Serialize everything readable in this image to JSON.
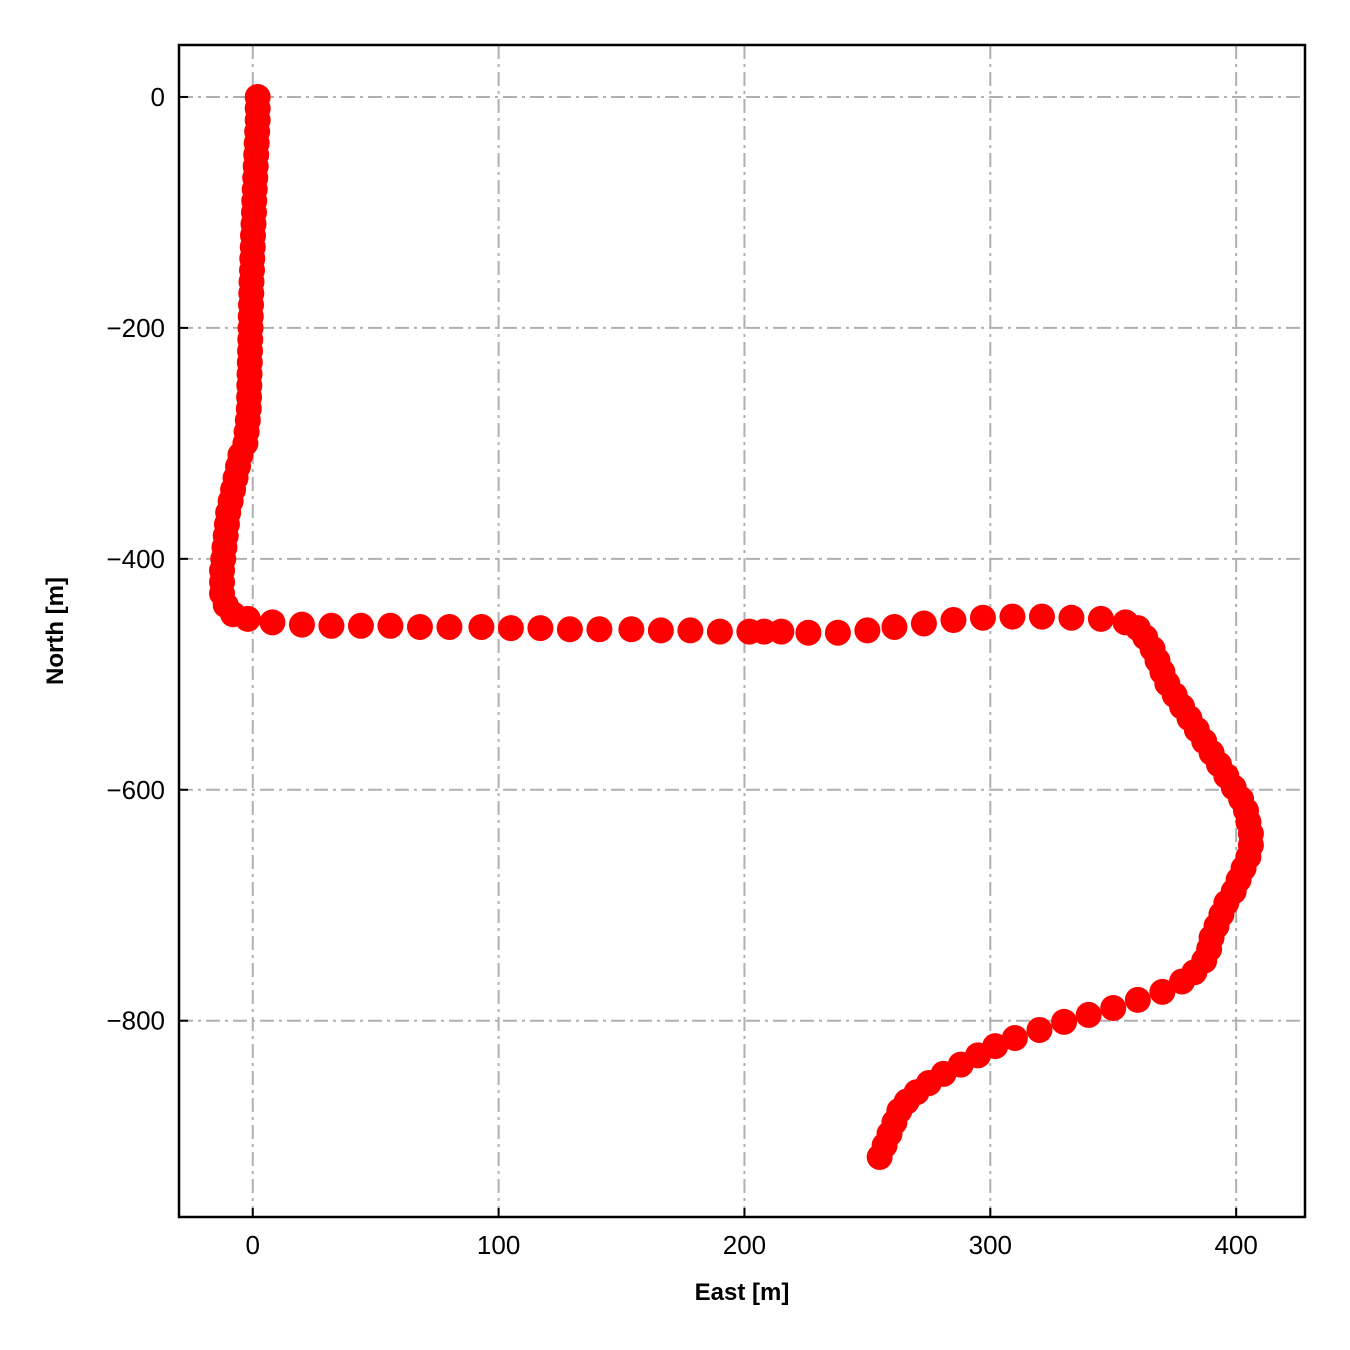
{
  "chart_data": {
    "type": "scatter",
    "title": "",
    "xlabel": "East [m]",
    "ylabel": "North [m]",
    "xlim": [
      -30,
      428
    ],
    "ylim": [
      -970,
      45
    ],
    "xticks": [
      0,
      100,
      200,
      300,
      400
    ],
    "yticks": [
      0,
      -200,
      -400,
      -600,
      -800
    ],
    "xtick_labels": [
      "0",
      "100",
      "200",
      "300",
      "400"
    ],
    "ytick_labels": [
      "0",
      "−200",
      "−400",
      "−600",
      "−800"
    ],
    "grid": true,
    "marker_color": "#ff0000",
    "series": [
      {
        "points": [
          [
            2,
            0
          ],
          [
            2,
            -10
          ],
          [
            2,
            -20
          ],
          [
            1.8,
            -30
          ],
          [
            1.6,
            -40
          ],
          [
            1.4,
            -50
          ],
          [
            1.2,
            -60
          ],
          [
            1,
            -70
          ],
          [
            0.8,
            -80
          ],
          [
            0.6,
            -90
          ],
          [
            0.5,
            -100
          ],
          [
            0.3,
            -110
          ],
          [
            0.1,
            -120
          ],
          [
            0,
            -130
          ],
          [
            -0.2,
            -140
          ],
          [
            -0.3,
            -150
          ],
          [
            -0.5,
            -160
          ],
          [
            -0.6,
            -170
          ],
          [
            -0.7,
            -180
          ],
          [
            -0.8,
            -190
          ],
          [
            -0.9,
            -200
          ],
          [
            -1,
            -210
          ],
          [
            -1.1,
            -220
          ],
          [
            -1.2,
            -230
          ],
          [
            -1.3,
            -240
          ],
          [
            -1.4,
            -250
          ],
          [
            -1.5,
            -260
          ],
          [
            -1.6,
            -270
          ],
          [
            -2,
            -280
          ],
          [
            -2.5,
            -290
          ],
          [
            -3,
            -300
          ],
          [
            -5,
            -310
          ],
          [
            -6,
            -320
          ],
          [
            -7,
            -330
          ],
          [
            -8,
            -340
          ],
          [
            -9,
            -350
          ],
          [
            -10,
            -360
          ],
          [
            -10.5,
            -370
          ],
          [
            -11,
            -380
          ],
          [
            -11.5,
            -390
          ],
          [
            -12,
            -400
          ],
          [
            -12.5,
            -410
          ],
          [
            -12.5,
            -420
          ],
          [
            -12.5,
            -430
          ],
          [
            -11,
            -440
          ],
          [
            -8,
            -448
          ],
          [
            -2,
            -452
          ],
          [
            8,
            -455
          ],
          [
            20,
            -457
          ],
          [
            32,
            -458
          ],
          [
            44,
            -458
          ],
          [
            56,
            -458
          ],
          [
            68,
            -459
          ],
          [
            80,
            -459
          ],
          [
            93,
            -459
          ],
          [
            105,
            -460
          ],
          [
            117,
            -460
          ],
          [
            129,
            -461
          ],
          [
            141,
            -461
          ],
          [
            154,
            -461
          ],
          [
            166,
            -462
          ],
          [
            178,
            -462
          ],
          [
            190,
            -463
          ],
          [
            202,
            -463
          ],
          [
            208,
            -463
          ],
          [
            215,
            -463
          ],
          [
            226,
            -464
          ],
          [
            238,
            -464
          ],
          [
            250,
            -462
          ],
          [
            261,
            -459
          ],
          [
            273,
            -456
          ],
          [
            285,
            -453
          ],
          [
            297,
            -451
          ],
          [
            309,
            -450
          ],
          [
            321,
            -450
          ],
          [
            333,
            -451
          ],
          [
            345,
            -452
          ],
          [
            355,
            -455
          ],
          [
            360,
            -460
          ],
          [
            363,
            -468
          ],
          [
            366,
            -478
          ],
          [
            368,
            -488
          ],
          [
            370,
            -498
          ],
          [
            372,
            -508
          ],
          [
            375,
            -518
          ],
          [
            378,
            -528
          ],
          [
            381,
            -538
          ],
          [
            384,
            -548
          ],
          [
            387,
            -558
          ],
          [
            390,
            -568
          ],
          [
            393,
            -578
          ],
          [
            396,
            -588
          ],
          [
            399,
            -598
          ],
          [
            402,
            -608
          ],
          [
            404,
            -618
          ],
          [
            405,
            -628
          ],
          [
            406,
            -638
          ],
          [
            406,
            -648
          ],
          [
            405,
            -658
          ],
          [
            403,
            -668
          ],
          [
            401,
            -678
          ],
          [
            399,
            -688
          ],
          [
            396,
            -698
          ],
          [
            394,
            -708
          ],
          [
            392,
            -718
          ],
          [
            390,
            -728
          ],
          [
            389,
            -738
          ],
          [
            387,
            -748
          ],
          [
            383,
            -758
          ],
          [
            378,
            -766
          ],
          [
            370,
            -775
          ],
          [
            360,
            -782
          ],
          [
            350,
            -789
          ],
          [
            340,
            -795
          ],
          [
            330,
            -801
          ],
          [
            320,
            -808
          ],
          [
            310,
            -815
          ],
          [
            302,
            -822
          ],
          [
            295,
            -830
          ],
          [
            288,
            -838
          ],
          [
            281,
            -846
          ],
          [
            275,
            -854
          ],
          [
            270,
            -862
          ],
          [
            266,
            -870
          ],
          [
            263,
            -878
          ],
          [
            261,
            -888
          ],
          [
            259,
            -898
          ],
          [
            257,
            -908
          ],
          [
            255,
            -918
          ]
        ]
      }
    ]
  }
}
